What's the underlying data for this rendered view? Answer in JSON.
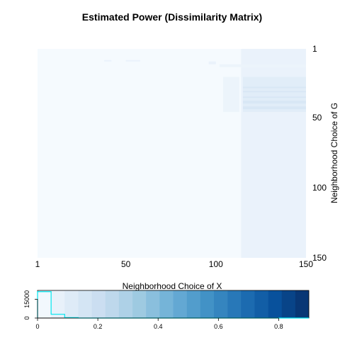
{
  "chart_data": [
    {
      "type": "heatmap",
      "title": "Estimated Power (Dissimilarity Matrix)",
      "xlabel": "Neighborhood Choice of X",
      "ylabel": "Neighborhood Choice of G",
      "xlim": [
        1,
        150
      ],
      "ylim": [
        1,
        150
      ],
      "x_ticks": [
        "1",
        "50",
        "100",
        "150"
      ],
      "y_ticks": [
        "1",
        "50",
        "100",
        "150"
      ],
      "y_axis_reversed": true,
      "base_value": 0.01,
      "regions": [
        {
          "x": [
            114,
            150
          ],
          "y": [
            1,
            150
          ],
          "value": 0.06
        },
        {
          "x": [
            115,
            150
          ],
          "y": [
            21,
            46
          ],
          "value": 0.1
        },
        {
          "x": [
            104,
            113
          ],
          "y": [
            21,
            46
          ],
          "value": 0.05
        },
        {
          "x": [
            102,
            150
          ],
          "y": [
            12,
            14
          ],
          "value": 0.05
        },
        {
          "x": [
            38,
            42
          ],
          "y": [
            9,
            10
          ],
          "value": 0.06
        },
        {
          "x": [
            50,
            58
          ],
          "y": [
            9,
            10
          ],
          "value": 0.06
        },
        {
          "x": [
            96,
            100
          ],
          "y": [
            10,
            12
          ],
          "value": 0.06
        }
      ],
      "row_bands": [
        {
          "x": [
            115,
            150
          ],
          "y": [
            28,
            29
          ],
          "value": 0.14
        },
        {
          "x": [
            115,
            150
          ],
          "y": [
            31,
            32
          ],
          "value": 0.14
        },
        {
          "x": [
            115,
            150
          ],
          "y": [
            35,
            36
          ],
          "value": 0.14
        },
        {
          "x": [
            115,
            150
          ],
          "y": [
            38,
            40
          ],
          "value": 0.14
        },
        {
          "x": [
            115,
            150
          ],
          "y": [
            42,
            44
          ],
          "value": 0.14
        }
      ]
    },
    {
      "type": "histogram",
      "x_ticks": [
        "0",
        "0.2",
        "0.4",
        "0.6",
        "0.8"
      ],
      "y_ticks": [
        "0",
        "15000"
      ],
      "xlim": [
        0,
        0.9
      ],
      "ylim": [
        0,
        22000
      ],
      "colorbar_bins": 20,
      "bins": [
        {
          "x0": 0.0,
          "x1": 0.045,
          "count": 21000
        },
        {
          "x0": 0.045,
          "x1": 0.09,
          "count": 3000
        },
        {
          "x0": 0.09,
          "x1": 0.135,
          "count": 400
        },
        {
          "x0": 0.135,
          "x1": 0.9,
          "count": 0
        }
      ]
    }
  ]
}
